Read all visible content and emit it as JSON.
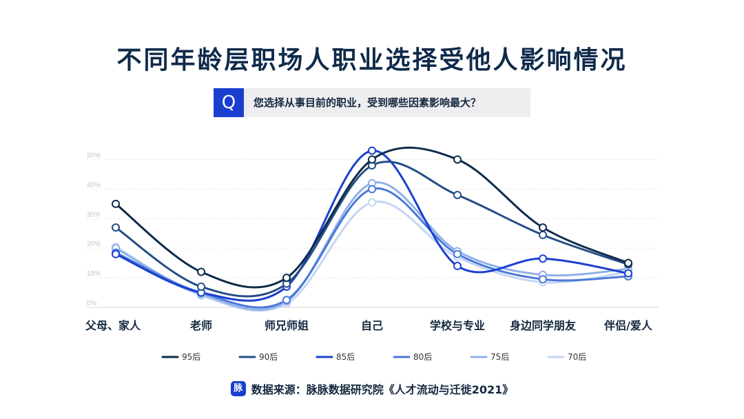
{
  "header": {
    "title": "不同年龄层职场人职业选择受他人影响情况",
    "question_icon": "Q",
    "question": "您选择从事目前的职业，受到哪些因素影响最大？"
  },
  "chart_data": {
    "type": "line",
    "title": "不同年龄层职场人职业选择受他人影响情况",
    "categories": [
      "父母、家人",
      "老师",
      "师兄师姐",
      "自己",
      "学校与专业",
      "身边同学朋友",
      "伴侣/爱人"
    ],
    "y_ticks": [
      "0%",
      "10%",
      "20%",
      "30%",
      "40%",
      "50%"
    ],
    "ylim": [
      0,
      0.55
    ],
    "grid": true,
    "legend_position": "bottom",
    "series": [
      {
        "name": "95后",
        "color": "#0f2a4a",
        "values": [
          0.35,
          0.12,
          0.1,
          0.5,
          0.5,
          0.27,
          0.15
        ]
      },
      {
        "name": "90后",
        "color": "#244e86",
        "values": [
          0.27,
          0.07,
          0.08,
          0.48,
          0.38,
          0.245,
          0.145
        ]
      },
      {
        "name": "85后",
        "color": "#1a3fd0",
        "values": [
          0.18,
          0.05,
          0.07,
          0.53,
          0.14,
          0.165,
          0.115
        ]
      },
      {
        "name": "80后",
        "color": "#4a78d8",
        "values": [
          0.185,
          0.05,
          0.025,
          0.4,
          0.18,
          0.095,
          0.105
        ]
      },
      {
        "name": "75后",
        "color": "#8fb0ea",
        "values": [
          0.2,
          0.045,
          0.02,
          0.42,
          0.19,
          0.11,
          0.13
        ]
      },
      {
        "name": "70后",
        "color": "#c3d6f4",
        "values": [
          0.205,
          0.04,
          0.012,
          0.355,
          0.17,
          0.085,
          0.12
        ]
      }
    ]
  },
  "footer": {
    "icon_label": "脉",
    "source": "数据来源：脉脉数据研究院《人才流动与迁徙2021》"
  }
}
